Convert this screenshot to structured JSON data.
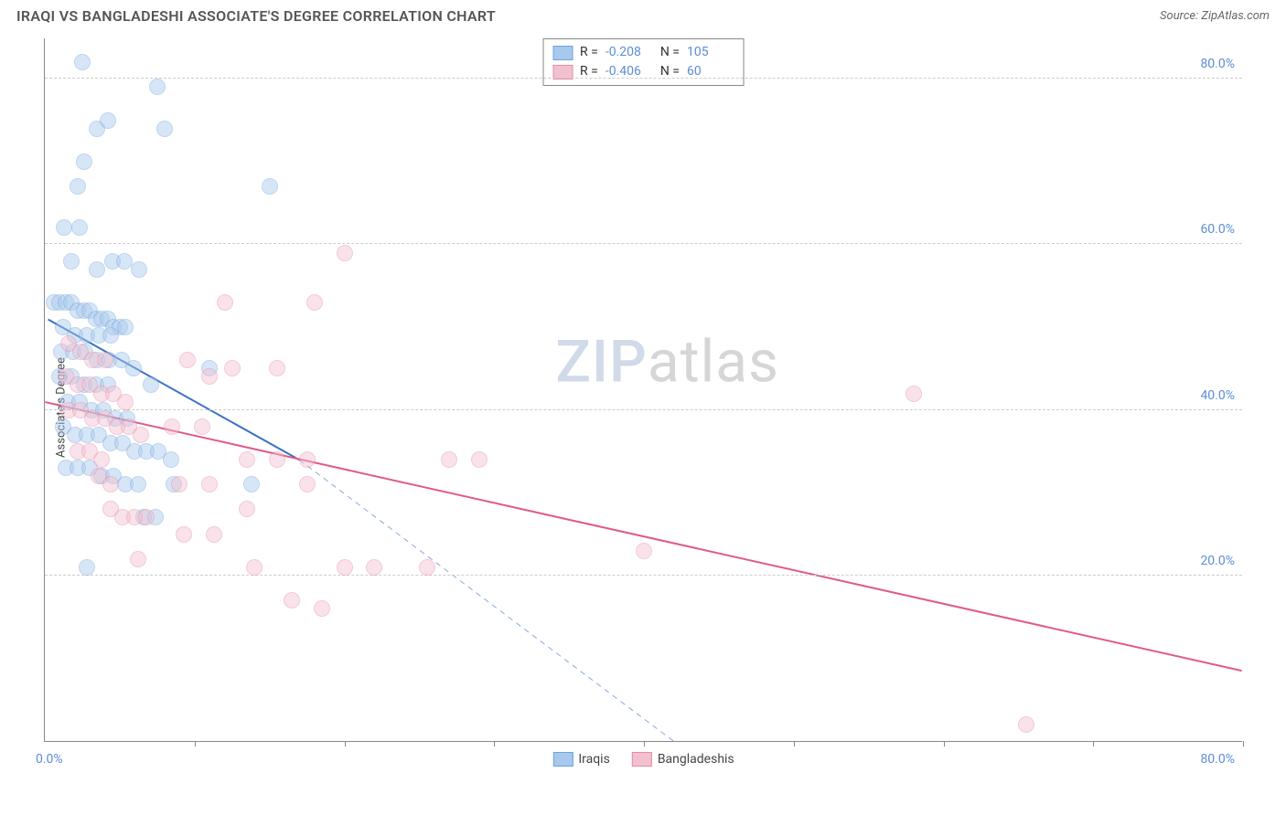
{
  "header": {
    "title": "IRAQI VS BANGLADESHI ASSOCIATE'S DEGREE CORRELATION CHART",
    "source": "Source: ZipAtlas.com"
  },
  "chart": {
    "type": "scatter",
    "ylabel": "Associate's Degree",
    "xlim": [
      0,
      80
    ],
    "ylim": [
      0,
      85
    ],
    "xticks": [
      10,
      20,
      30,
      40,
      50,
      60,
      70,
      80
    ],
    "yticks": [
      20,
      40,
      60,
      80
    ],
    "ytick_labels": [
      "20.0%",
      "40.0%",
      "60.0%",
      "80.0%"
    ],
    "xorigin_label": "0.0%",
    "xmax_label": "80.0%",
    "grid_color": "#cccccc",
    "axis_color": "#888888",
    "background_color": "#ffffff",
    "point_radius": 9,
    "point_opacity": 0.45,
    "series": [
      {
        "name": "Iraqis",
        "color_fill": "#a8c8ec",
        "color_stroke": "#6fa3dd",
        "R": "-0.208",
        "N": "105",
        "trend": {
          "x1": 0.2,
          "y1": 51,
          "x2": 17,
          "y2": 34,
          "dash_to_x": 42,
          "dash_to_y": 0,
          "stroke": "#3b72c4",
          "width": 2
        },
        "points": [
          [
            2.5,
            82
          ],
          [
            7.5,
            79
          ],
          [
            3.5,
            74
          ],
          [
            4.2,
            75
          ],
          [
            8,
            74
          ],
          [
            2.6,
            70
          ],
          [
            2.2,
            67
          ],
          [
            15,
            67
          ],
          [
            1.3,
            62
          ],
          [
            2.3,
            62
          ],
          [
            1.8,
            58
          ],
          [
            4.5,
            58
          ],
          [
            3.5,
            57
          ],
          [
            5.3,
            58
          ],
          [
            6.3,
            57
          ],
          [
            0.6,
            53
          ],
          [
            1.0,
            53
          ],
          [
            1.4,
            53
          ],
          [
            1.8,
            53
          ],
          [
            2.2,
            52
          ],
          [
            2.6,
            52
          ],
          [
            3.0,
            52
          ],
          [
            3.4,
            51
          ],
          [
            3.8,
            51
          ],
          [
            4.2,
            51
          ],
          [
            4.6,
            50
          ],
          [
            5.0,
            50
          ],
          [
            5.4,
            50
          ],
          [
            1.2,
            50
          ],
          [
            2.0,
            49
          ],
          [
            2.8,
            49
          ],
          [
            3.6,
            49
          ],
          [
            4.4,
            49
          ],
          [
            1.1,
            47
          ],
          [
            1.9,
            47
          ],
          [
            2.7,
            47
          ],
          [
            3.5,
            46
          ],
          [
            4.3,
            46
          ],
          [
            5.1,
            46
          ],
          [
            5.9,
            45
          ],
          [
            1.0,
            44
          ],
          [
            1.8,
            44
          ],
          [
            2.6,
            43
          ],
          [
            3.4,
            43
          ],
          [
            4.2,
            43
          ],
          [
            7.1,
            43
          ],
          [
            11,
            45
          ],
          [
            1.5,
            41
          ],
          [
            2.3,
            41
          ],
          [
            3.1,
            40
          ],
          [
            3.9,
            40
          ],
          [
            4.7,
            39
          ],
          [
            5.5,
            39
          ],
          [
            1.2,
            38
          ],
          [
            2.0,
            37
          ],
          [
            2.8,
            37
          ],
          [
            3.6,
            37
          ],
          [
            4.4,
            36
          ],
          [
            5.2,
            36
          ],
          [
            6.0,
            35
          ],
          [
            6.8,
            35
          ],
          [
            7.6,
            35
          ],
          [
            8.4,
            34
          ],
          [
            1.4,
            33
          ],
          [
            2.2,
            33
          ],
          [
            3.0,
            33
          ],
          [
            3.8,
            32
          ],
          [
            4.6,
            32
          ],
          [
            5.4,
            31
          ],
          [
            6.2,
            31
          ],
          [
            8.6,
            31
          ],
          [
            13.8,
            31
          ],
          [
            6.6,
            27
          ],
          [
            7.4,
            27
          ],
          [
            2.8,
            21
          ]
        ]
      },
      {
        "name": "Bangladeshis",
        "color_fill": "#f3c0cf",
        "color_stroke": "#e88aa8",
        "R": "-0.406",
        "N": "60",
        "trend": {
          "x1": 0,
          "y1": 41,
          "x2": 80,
          "y2": 8.5,
          "stroke": "#e05a87",
          "width": 2
        },
        "points": [
          [
            20,
            59
          ],
          [
            12,
            53
          ],
          [
            18,
            53
          ],
          [
            1.6,
            48
          ],
          [
            2.4,
            47
          ],
          [
            3.2,
            46
          ],
          [
            4.0,
            46
          ],
          [
            9.5,
            46
          ],
          [
            12.5,
            45
          ],
          [
            15.5,
            45
          ],
          [
            1.4,
            44
          ],
          [
            2.2,
            43
          ],
          [
            3.0,
            43
          ],
          [
            3.8,
            42
          ],
          [
            4.6,
            42
          ],
          [
            5.4,
            41
          ],
          [
            11,
            44
          ],
          [
            58,
            42
          ],
          [
            1.6,
            40
          ],
          [
            2.4,
            40
          ],
          [
            3.2,
            39
          ],
          [
            4.0,
            39
          ],
          [
            4.8,
            38
          ],
          [
            5.6,
            38
          ],
          [
            6.4,
            37
          ],
          [
            8.5,
            38
          ],
          [
            10.5,
            38
          ],
          [
            2.2,
            35
          ],
          [
            3.0,
            35
          ],
          [
            3.8,
            34
          ],
          [
            13.5,
            34
          ],
          [
            15.5,
            34
          ],
          [
            17.5,
            34
          ],
          [
            27,
            34
          ],
          [
            29,
            34
          ],
          [
            3.6,
            32
          ],
          [
            4.4,
            31
          ],
          [
            9,
            31
          ],
          [
            11,
            31
          ],
          [
            17.5,
            31
          ],
          [
            4.4,
            28
          ],
          [
            5.2,
            27
          ],
          [
            6.0,
            27
          ],
          [
            6.8,
            27
          ],
          [
            13.5,
            28
          ],
          [
            9.3,
            25
          ],
          [
            11.3,
            25
          ],
          [
            40,
            23
          ],
          [
            6.2,
            22
          ],
          [
            14,
            21
          ],
          [
            20,
            21
          ],
          [
            22,
            21
          ],
          [
            25.5,
            21
          ],
          [
            16.5,
            17
          ],
          [
            18.5,
            16
          ],
          [
            65.5,
            2
          ]
        ]
      }
    ],
    "watermark": {
      "zip": "ZIP",
      "rest": "atlas"
    }
  },
  "legend_bottom": {
    "items": [
      "Iraqis",
      "Bangladeshis"
    ]
  }
}
